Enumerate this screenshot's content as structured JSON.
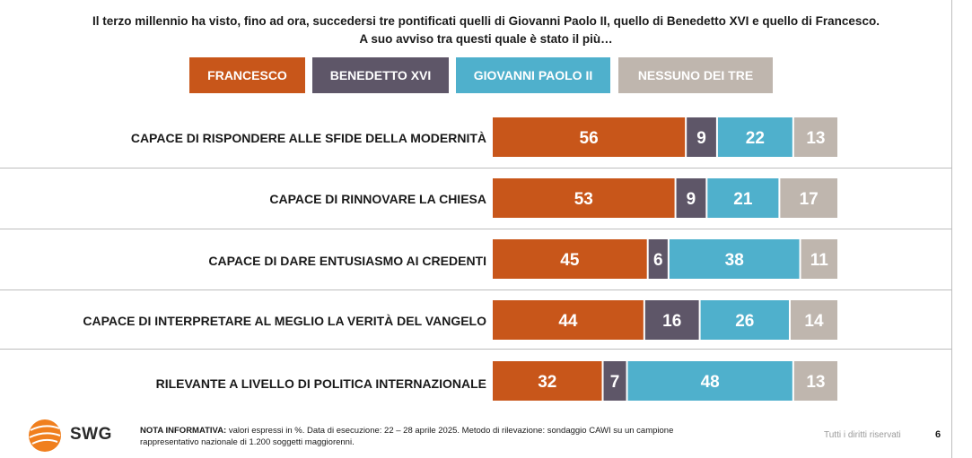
{
  "header": {
    "title_line1": "Il terzo millennio ha visto, fino ad ora, succedersi tre pontificati quelli di Giovanni Paolo II, quello di Benedetto XVI e quello di Francesco.",
    "title_line2": "A suo avviso tra questi quale è stato il più…"
  },
  "colors": {
    "francesco": "#c8561a",
    "benedetto": "#5e5668",
    "giovanni": "#4fb0cc",
    "nessuno": "#bfb6ae"
  },
  "chart_data": {
    "type": "bar",
    "orientation": "horizontal",
    "stacked": true,
    "unit": "%",
    "categories": [
      "CAPACE DI RISPONDERE ALLE SFIDE DELLA MODERNITÀ",
      "CAPACE DI RINNOVARE LA CHIESA",
      "CAPACE DI DARE ENTUSIASMO AI CREDENTI",
      "CAPACE DI INTERPRETARE AL MEGLIO LA VERITÀ DEL VANGELO",
      "RILEVANTE A LIVELLO DI POLITICA INTERNAZIONALE"
    ],
    "series": [
      {
        "name": "FRANCESCO",
        "color": "#c8561a",
        "values": [
          56,
          53,
          45,
          44,
          32
        ]
      },
      {
        "name": "BENEDETTO XVI",
        "color": "#5e5668",
        "values": [
          9,
          9,
          6,
          16,
          7
        ]
      },
      {
        "name": "GIOVANNI PAOLO II",
        "color": "#4fb0cc",
        "values": [
          22,
          21,
          38,
          26,
          48
        ]
      },
      {
        "name": "NESSUNO DEI TRE",
        "color": "#bfb6ae",
        "values": [
          13,
          17,
          11,
          14,
          13
        ]
      }
    ],
    "legend_position": "top",
    "grid": false
  },
  "footer": {
    "logo_text": "SWG",
    "note_label": "NOTA INFORMATIVA:",
    "note_text": "valori espressi in %. Data di esecuzione: 22 – 28 aprile 2025. Metodo di rilevazione: sondaggio CAWI su un campione",
    "note_text2": "rappresentativo nazionale di 1.200 soggetti maggiorenni.",
    "rights": "Tutti i diritti riservati",
    "page_number": "6"
  }
}
